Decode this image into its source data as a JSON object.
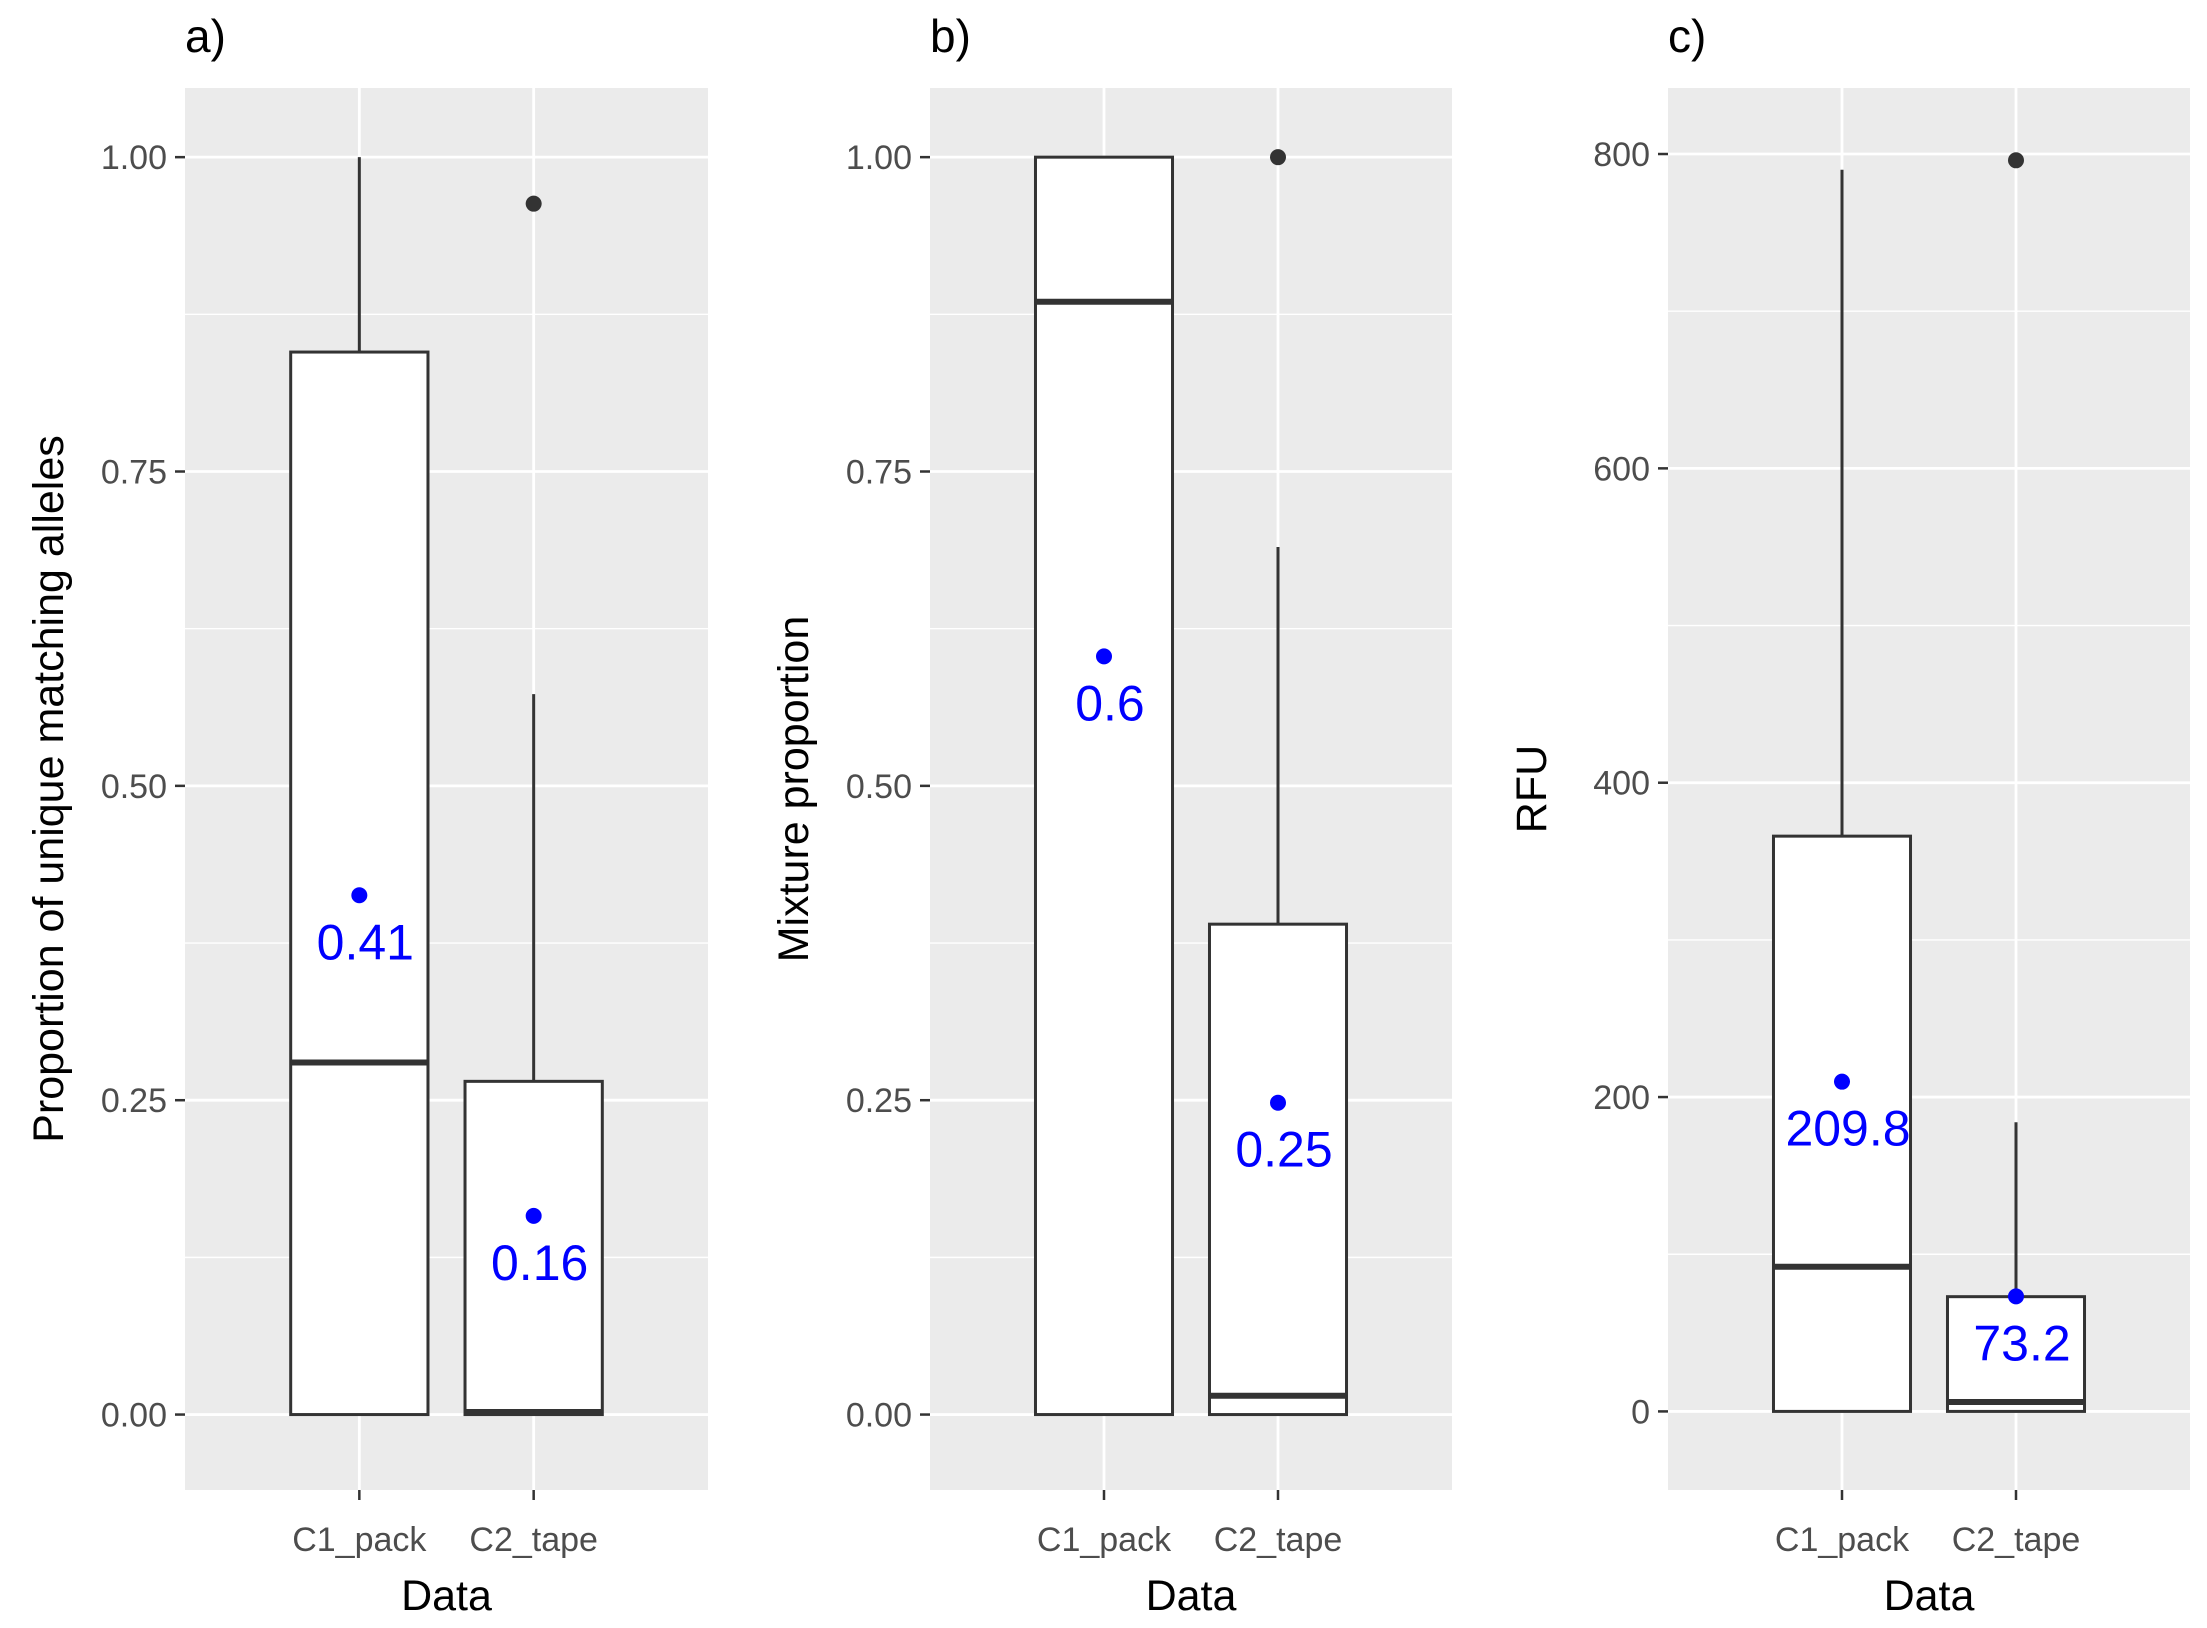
{
  "chart_data": [
    {
      "type": "box",
      "panel_label": "a)",
      "xlabel": "Data",
      "ylabel": "Proportion of unique matching alleles",
      "ylim": [
        -0.06,
        1.055
      ],
      "yticks": [
        0,
        0.25,
        0.5,
        0.75,
        1
      ],
      "ytick_labels": [
        "0.00",
        "0.25",
        "0.50",
        "0.75",
        "1.00"
      ],
      "categories": [
        "C1_pack",
        "C2_tape"
      ],
      "boxes": [
        {
          "lower_whisker": 0,
          "q1": 0,
          "median": 0.28,
          "q3": 0.845,
          "upper_whisker": 1.0,
          "outliers": [],
          "mean": 0.413,
          "mean_label": "0.41"
        },
        {
          "lower_whisker": 0,
          "q1": 0,
          "median": 0.002,
          "q3": 0.265,
          "upper_whisker": 0.573,
          "outliers": [
            0.963
          ],
          "mean": 0.158,
          "mean_label": "0.16"
        }
      ]
    },
    {
      "type": "box",
      "panel_label": "b)",
      "xlabel": "Data",
      "ylabel": "Mixture proportion",
      "ylim": [
        -0.06,
        1.055
      ],
      "yticks": [
        0,
        0.25,
        0.5,
        0.75,
        1
      ],
      "ytick_labels": [
        "0.00",
        "0.25",
        "0.50",
        "0.75",
        "1.00"
      ],
      "categories": [
        "C1_pack",
        "C2_tape"
      ],
      "boxes": [
        {
          "lower_whisker": 0,
          "q1": 0,
          "median": 0.885,
          "q3": 1.0,
          "upper_whisker": 1.0,
          "outliers": [],
          "mean": 0.603,
          "mean_label": "0.6"
        },
        {
          "lower_whisker": 0,
          "q1": 0,
          "median": 0.015,
          "q3": 0.39,
          "upper_whisker": 0.69,
          "outliers": [
            1.0
          ],
          "mean": 0.248,
          "mean_label": "0.25"
        }
      ]
    },
    {
      "type": "box",
      "panel_label": "c)",
      "xlabel": "Data",
      "ylabel": "RFU",
      "ylim": [
        -50,
        842
      ],
      "yticks": [
        0,
        200,
        400,
        600,
        800
      ],
      "ytick_labels": [
        "0",
        "200",
        "400",
        "600",
        "800"
      ],
      "categories": [
        "C1_pack",
        "C2_tape"
      ],
      "boxes": [
        {
          "lower_whisker": 0,
          "q1": 0,
          "median": 92,
          "q3": 366,
          "upper_whisker": 790,
          "outliers": [],
          "mean": 209.8,
          "mean_label": "209.8"
        },
        {
          "lower_whisker": 0,
          "q1": 0,
          "median": 6,
          "q3": 73,
          "upper_whisker": 184,
          "outliers": [
            796
          ],
          "mean": 73.2,
          "mean_label": "73.2"
        }
      ]
    }
  ],
  "colors": {
    "panel_background": "#ebebeb",
    "grid_major": "#ffffff",
    "box_fill": "#ffffff",
    "box_line": "#333333",
    "outlier": "#333333",
    "mean_point": "#0000ff",
    "mean_text": "#0000ff"
  }
}
